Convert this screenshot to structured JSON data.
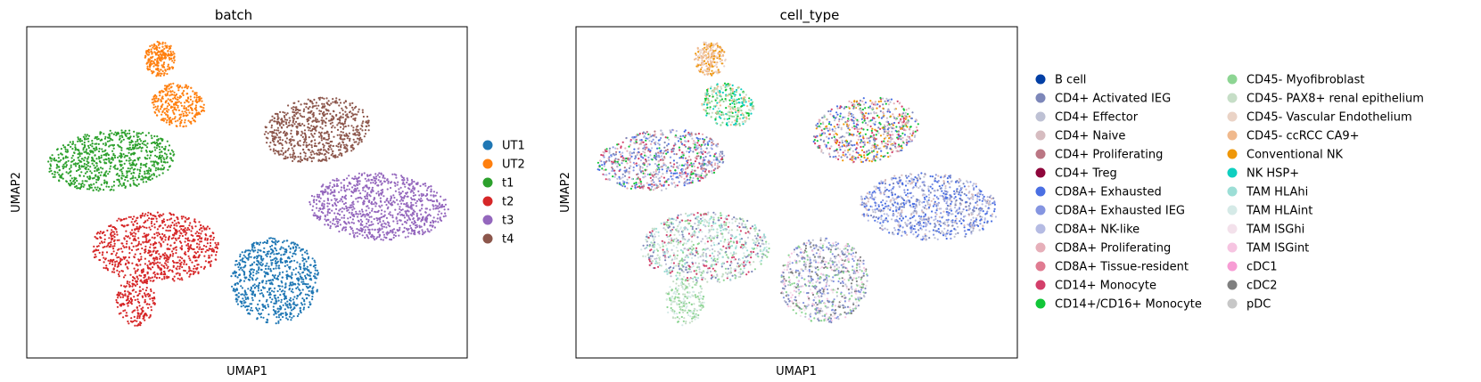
{
  "chart_data": [
    {
      "type": "scatter",
      "title": "batch",
      "xlabel": "UMAP1",
      "ylabel": "UMAP2",
      "grid": false,
      "legend_position": "right",
      "legend": [
        {
          "label": "UT1",
          "color": "#1f77b4"
        },
        {
          "label": "UT2",
          "color": "#ff7f0e"
        },
        {
          "label": "t1",
          "color": "#2ca02c"
        },
        {
          "label": "t2",
          "color": "#d62728"
        },
        {
          "label": "t3",
          "color": "#9467bd"
        },
        {
          "label": "t4",
          "color": "#8c564b"
        }
      ]
    },
    {
      "type": "scatter",
      "title": "cell_type",
      "xlabel": "UMAP1",
      "ylabel": "UMAP2",
      "grid": false,
      "legend_position": "right",
      "legend": [
        {
          "label": "B cell",
          "color": "#023fa5"
        },
        {
          "label": "CD4+ Activated IEG",
          "color": "#7d87b9"
        },
        {
          "label": "CD4+ Effector",
          "color": "#bec1d4"
        },
        {
          "label": "CD4+ Naive",
          "color": "#d6bcc0"
        },
        {
          "label": "CD4+ Proliferating",
          "color": "#bb7784"
        },
        {
          "label": "CD4+ Treg",
          "color": "#8e063b"
        },
        {
          "label": "CD8A+ Exhausted",
          "color": "#4a6fe3"
        },
        {
          "label": "CD8A+ Exhausted IEG",
          "color": "#8595e1"
        },
        {
          "label": "CD8A+ NK-like",
          "color": "#b5bbe3"
        },
        {
          "label": "CD8A+ Proliferating",
          "color": "#e6afb9"
        },
        {
          "label": "CD8A+ Tissue-resident",
          "color": "#e07b91"
        },
        {
          "label": "CD14+ Monocyte",
          "color": "#d33f6a"
        },
        {
          "label": "CD14+/CD16+ Monocyte",
          "color": "#11c638"
        },
        {
          "label": "CD45- Myofibroblast",
          "color": "#8dd593"
        },
        {
          "label": "CD45- PAX8+ renal epithelium",
          "color": "#c6dec7"
        },
        {
          "label": "CD45- Vascular Endothelium",
          "color": "#ead3c6"
        },
        {
          "label": "CD45- ccRCC CA9+",
          "color": "#f0b98d"
        },
        {
          "label": "Conventional NK",
          "color": "#ef9708"
        },
        {
          "label": "NK HSP+",
          "color": "#0fcfc0"
        },
        {
          "label": "TAM HLAhi",
          "color": "#9cded6"
        },
        {
          "label": "TAM HLAint",
          "color": "#d5eae7"
        },
        {
          "label": "TAM ISGhi",
          "color": "#f3e1eb"
        },
        {
          "label": "TAM ISGint",
          "color": "#f6c4e1"
        },
        {
          "label": "cDC1",
          "color": "#f79cd4"
        },
        {
          "label": "cDC2",
          "color": "#7f7f7f"
        },
        {
          "label": "pDC",
          "color": "#c7c7c7"
        }
      ]
    }
  ]
}
